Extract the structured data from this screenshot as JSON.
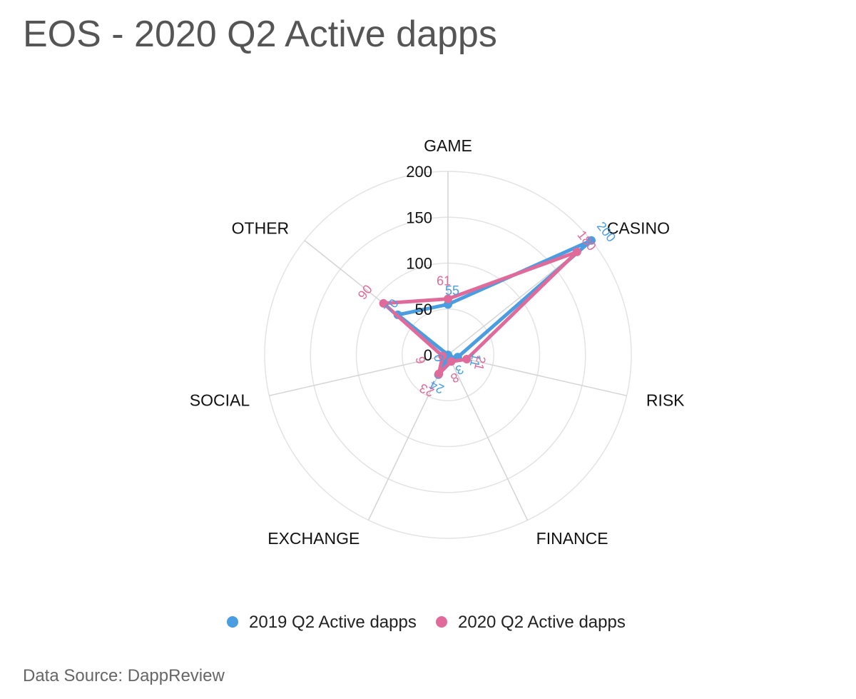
{
  "title": "EOS - 2020 Q2 Active dapps",
  "source": "Data Source: DappReview",
  "colors": {
    "series1": "#4a9de0",
    "series2": "#e06b9a",
    "grid": "#e3e3e3",
    "axis": "#d4d4d4"
  },
  "chart_data": {
    "type": "radar",
    "categories": [
      "GAME",
      "CASINO",
      "RISK",
      "FINANCE",
      "EXCHANGE",
      "SOCIAL",
      "OTHER"
    ],
    "rlim": [
      0,
      200
    ],
    "ticks": [
      0,
      50,
      100,
      150,
      200
    ],
    "tick_labels": [
      "0",
      "50",
      "100",
      "150",
      "200"
    ],
    "series": [
      {
        "name": "2019 Q2 Active dapps",
        "values": [
          55,
          200,
          11,
          3,
          24,
          0,
          70
        ],
        "labels": [
          "55",
          "200",
          "11",
          "3",
          "24",
          "0",
          "70"
        ]
      },
      {
        "name": "2020 Q2 Active dapps",
        "values": [
          61,
          180,
          21,
          8,
          23,
          6,
          90
        ],
        "labels": [
          "61",
          "180",
          "21",
          "8",
          "23",
          "6",
          "90"
        ]
      }
    ],
    "legend": "bottom"
  }
}
